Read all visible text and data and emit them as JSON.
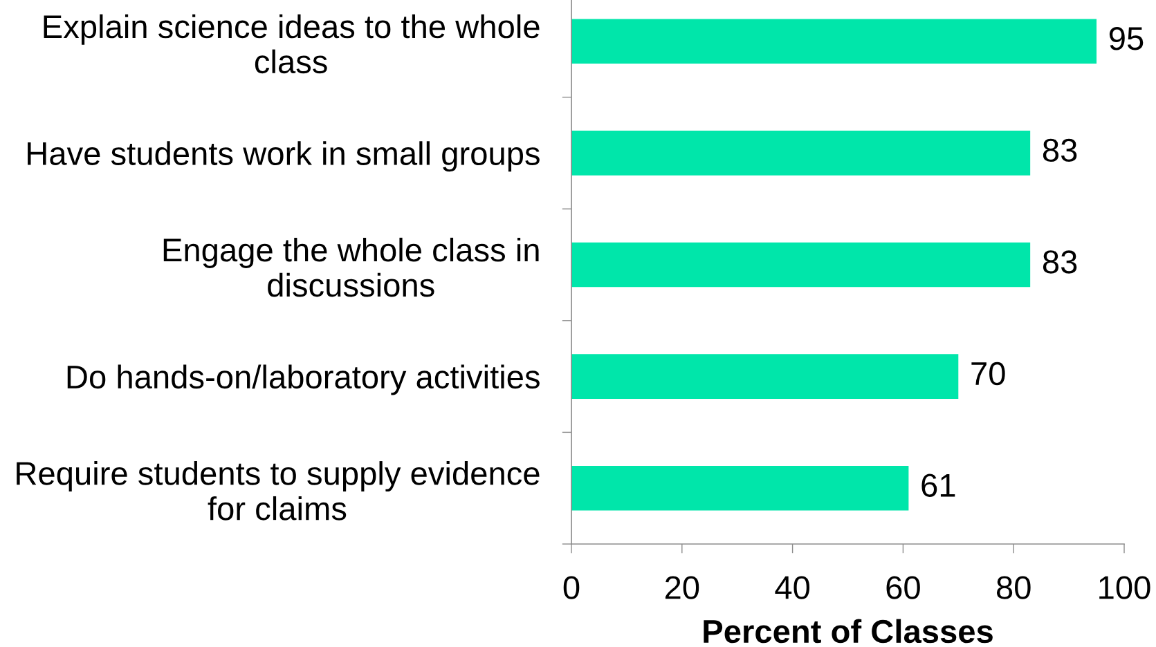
{
  "chart_data": {
    "type": "bar",
    "orientation": "horizontal",
    "xlabel": "Percent of Classes",
    "categories": [
      "Explain science ideas to the whole\nclass",
      "Have students work in small groups",
      "Engage the whole class in\ndiscussions",
      "Do hands-on/laboratory activities",
      "Require students to supply evidence\nfor claims"
    ],
    "values": [
      95,
      83,
      83,
      70,
      61
    ],
    "color": "#00e6aa",
    "xlim": [
      0,
      100
    ],
    "xticks": [
      0,
      20,
      40,
      60,
      80,
      100
    ],
    "data_labels": true
  }
}
